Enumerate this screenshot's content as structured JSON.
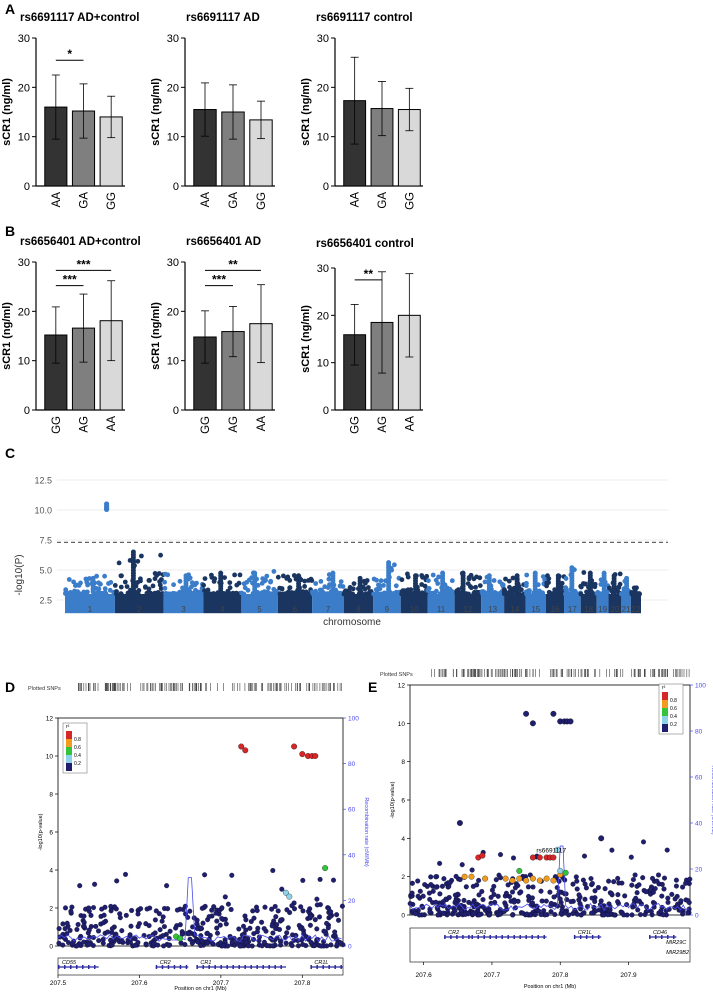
{
  "panel_letters": [
    "A",
    "B",
    "C",
    "D",
    "E"
  ],
  "colors": {
    "bar_dark": "#333333",
    "bar_mid": "#7f7f7f",
    "bar_light": "#d9d9d9",
    "manhattan_light": "#3b7dc9",
    "manhattan_dark": "#1a3560",
    "threshold": "#666666",
    "snp_navy": "#1f1f6e",
    "recomb_line": "#4a4af0",
    "ld_red": "#d62728",
    "ld_orange": "#f29c1f",
    "ld_green": "#33c43b",
    "ld_cyan": "#8fd3e8",
    "gene_blue": "#2b2b9e"
  },
  "chart_data": [
    {
      "id": "A1",
      "type": "bar",
      "title": "rs6691117 AD+control",
      "ylabel": "sCR1 (ng/ml)",
      "categories": [
        "AA",
        "GA",
        "GG"
      ],
      "values": [
        16,
        15.2,
        14
      ],
      "errors": [
        6.5,
        5.5,
        4.2
      ],
      "ylim": [
        0,
        30
      ],
      "yticks": [
        0,
        10,
        20,
        30
      ],
      "brackets": [
        {
          "from": 0,
          "to": 1,
          "label": "*"
        }
      ]
    },
    {
      "id": "A2",
      "type": "bar",
      "title": "rs6691117 AD",
      "ylabel": "sCR1 (ng/ml)",
      "categories": [
        "AA",
        "GA",
        "GG"
      ],
      "values": [
        15.5,
        15,
        13.4
      ],
      "errors": [
        5.4,
        5.5,
        3.8
      ],
      "ylim": [
        0,
        30
      ],
      "yticks": [
        0,
        10,
        20,
        30
      ],
      "brackets": []
    },
    {
      "id": "A3",
      "type": "bar",
      "title": "rs6691117 control",
      "ylabel": "sCR1 (ng/ml)",
      "categories": [
        "AA",
        "GA",
        "GG"
      ],
      "values": [
        17.3,
        15.7,
        15.5
      ],
      "errors": [
        8.8,
        5.5,
        4.3
      ],
      "ylim": [
        0,
        30
      ],
      "yticks": [
        0,
        10,
        20,
        30
      ],
      "brackets": []
    },
    {
      "id": "B1",
      "type": "bar",
      "title": "rs6656401 AD+control",
      "ylabel": "sCR1 (ng/ml)",
      "categories": [
        "GG",
        "AG",
        "AA"
      ],
      "values": [
        15.2,
        16.6,
        18.1
      ],
      "errors": [
        5.7,
        6.9,
        8.1
      ],
      "ylim": [
        0,
        30
      ],
      "yticks": [
        0,
        10,
        20,
        30
      ],
      "brackets": [
        {
          "from": 0,
          "to": 1,
          "label": "***"
        },
        {
          "from": 0,
          "to": 2,
          "label": "***"
        }
      ]
    },
    {
      "id": "B2",
      "type": "bar",
      "title": "rs6656401 AD",
      "ylabel": "sCR1 (ng/ml)",
      "categories": [
        "GG",
        "AG",
        "AA"
      ],
      "values": [
        14.8,
        15.9,
        17.5
      ],
      "errors": [
        5.3,
        5.1,
        7.9
      ],
      "ylim": [
        0,
        30
      ],
      "yticks": [
        0,
        10,
        20,
        30
      ],
      "brackets": [
        {
          "from": 0,
          "to": 1,
          "label": "***"
        },
        {
          "from": 0,
          "to": 2,
          "label": "**"
        }
      ]
    },
    {
      "id": "B3",
      "type": "bar",
      "title": "rs6656401 control",
      "ylabel": "sCR1 (ng/ml)",
      "categories": [
        "GG",
        "AG",
        "AA"
      ],
      "values": [
        15.9,
        18.5,
        20
      ],
      "errors": [
        6.4,
        10.7,
        8.8
      ],
      "ylim": [
        0,
        30
      ],
      "yticks": [
        0,
        10,
        20,
        30
      ],
      "brackets": [
        {
          "from": 0,
          "to": 1,
          "label": "**"
        }
      ]
    },
    {
      "id": "C",
      "type": "scatter",
      "subtype": "manhattan",
      "xlabel": "chromosome",
      "ylabel": "-log10(P)",
      "ylim": [
        1.3,
        13.0
      ],
      "yticks": [
        2.5,
        5.0,
        7.5,
        10.0,
        12.5
      ],
      "threshold": 7.3,
      "grid": true,
      "chromosomes": [
        "1",
        "2",
        "3",
        "4",
        "5",
        "6",
        "7",
        "8",
        "9",
        "10",
        "11",
        "12",
        "13",
        "14",
        "15",
        "16",
        "17",
        "18",
        "19",
        "20",
        "21",
        "22"
      ],
      "chrom_sizes": [
        249,
        243,
        198,
        190,
        182,
        171,
        159,
        145,
        138,
        134,
        135,
        133,
        114,
        107,
        102,
        90,
        83,
        80,
        59,
        64,
        47,
        51
      ],
      "chrom_peaks": [
        4.5,
        6.5,
        4.7,
        4.8,
        4.9,
        4.6,
        4.8,
        4.5,
        5.8,
        4.7,
        4.9,
        4.9,
        4.6,
        4.6,
        4.9,
        4.6,
        5.3,
        4.8,
        4.9,
        4.7,
        4.4,
        3.6
      ],
      "hits": [
        {
          "chrom": "1",
          "pos": 207.75,
          "values": [
            10.05,
            10.15,
            10.3,
            10.5
          ]
        }
      ]
    },
    {
      "id": "D",
      "type": "scatter",
      "subtype": "regional",
      "xlabel": "Position on chr1 (Mb)",
      "ylabel": "-log10(p-value)",
      "ylabel2": "Recombination rate (cM/Mb)",
      "xlim": [
        207.5,
        207.85
      ],
      "xticks": [
        207.5,
        207.6,
        207.7,
        207.8
      ],
      "ylim": [
        0,
        12
      ],
      "yticks": [
        0,
        2,
        4,
        6,
        8,
        10,
        12
      ],
      "y2lim": [
        0,
        100
      ],
      "y2ticks": [
        0,
        20,
        40,
        60,
        80,
        100
      ],
      "plotted_snps_label": "Plotted SNPs",
      "legend_title": "r²",
      "legend_ticks": [
        "0.8",
        "0.6",
        "0.4",
        "0.2"
      ],
      "genes": [
        {
          "name": "CD55",
          "start": 207.5,
          "end": 207.55
        },
        {
          "name": "CR2",
          "start": 207.62,
          "end": 207.66
        },
        {
          "name": "CR1",
          "start": 207.67,
          "end": 207.78
        },
        {
          "name": "CR1L",
          "start": 207.81,
          "end": 207.85
        }
      ],
      "highlight": [
        {
          "x": 207.725,
          "y": 10.5,
          "ld": "red"
        },
        {
          "x": 207.73,
          "y": 10.3,
          "ld": "red"
        },
        {
          "x": 207.79,
          "y": 10.5,
          "ld": "red"
        },
        {
          "x": 207.8,
          "y": 10.1,
          "ld": "red"
        },
        {
          "x": 207.807,
          "y": 10.0,
          "ld": "red"
        },
        {
          "x": 207.812,
          "y": 10.0,
          "ld": "red"
        },
        {
          "x": 207.816,
          "y": 10.0,
          "ld": "red"
        },
        {
          "x": 207.828,
          "y": 4.1,
          "ld": "green"
        },
        {
          "x": 207.645,
          "y": 0.5,
          "ld": "green"
        },
        {
          "x": 207.65,
          "y": 0.4,
          "ld": "green"
        },
        {
          "x": 207.78,
          "y": 2.8,
          "ld": "cyan"
        },
        {
          "x": 207.784,
          "y": 2.6,
          "ld": "cyan"
        }
      ]
    },
    {
      "id": "E",
      "type": "scatter",
      "subtype": "regional",
      "xlabel": "Position on chr1 (Mb)",
      "ylabel": "-log10(p-value)",
      "ylabel2": "Recombination rate (cM/Mb)",
      "xlim": [
        207.58,
        207.99
      ],
      "xticks": [
        207.6,
        207.7,
        207.8,
        207.9
      ],
      "ylim": [
        0,
        12
      ],
      "yticks": [
        0,
        2,
        4,
        6,
        8,
        10,
        12
      ],
      "y2lim": [
        0,
        100
      ],
      "y2ticks": [
        0,
        20,
        40,
        60,
        80,
        100
      ],
      "plotted_snps_label": "Plotted SNPs",
      "legend_title": "r²",
      "legend_ticks": [
        "0.8",
        "0.6",
        "0.4",
        "0.2"
      ],
      "annotation": "rs6691117",
      "genes": [
        {
          "name": "CR2",
          "start": 207.63,
          "end": 207.67
        },
        {
          "name": "CR1",
          "start": 207.67,
          "end": 207.78
        },
        {
          "name": "CR1L",
          "start": 207.82,
          "end": 207.86
        },
        {
          "name": "CD46",
          "start": 207.93,
          "end": 207.97
        },
        {
          "name": "MIR29C",
          "start": 207.97,
          "end": 207.975
        },
        {
          "name": "MIR29B2",
          "start": 207.97,
          "end": 207.975
        }
      ],
      "highlight": [
        {
          "x": 207.76,
          "y": 3.0,
          "ld": "red"
        },
        {
          "x": 207.77,
          "y": 3.0,
          "ld": "red"
        },
        {
          "x": 207.78,
          "y": 3.0,
          "ld": "red"
        },
        {
          "x": 207.785,
          "y": 3.0,
          "ld": "red"
        },
        {
          "x": 207.79,
          "y": 3.0,
          "ld": "red"
        },
        {
          "x": 207.68,
          "y": 3.0,
          "ld": "red"
        },
        {
          "x": 207.686,
          "y": 3.1,
          "ld": "red"
        },
        {
          "x": 207.66,
          "y": 2.0,
          "ld": "orange"
        },
        {
          "x": 207.67,
          "y": 2.0,
          "ld": "orange"
        },
        {
          "x": 207.69,
          "y": 1.9,
          "ld": "orange"
        },
        {
          "x": 207.72,
          "y": 1.9,
          "ld": "orange"
        },
        {
          "x": 207.73,
          "y": 1.8,
          "ld": "orange"
        },
        {
          "x": 207.74,
          "y": 1.9,
          "ld": "orange"
        },
        {
          "x": 207.75,
          "y": 1.8,
          "ld": "orange"
        },
        {
          "x": 207.76,
          "y": 1.9,
          "ld": "orange"
        },
        {
          "x": 207.77,
          "y": 1.8,
          "ld": "orange"
        },
        {
          "x": 207.78,
          "y": 1.9,
          "ld": "orange"
        },
        {
          "x": 207.79,
          "y": 1.8,
          "ld": "orange"
        },
        {
          "x": 207.8,
          "y": 2.1,
          "ld": "orange"
        },
        {
          "x": 207.74,
          "y": 2.3,
          "ld": "green"
        },
        {
          "x": 207.808,
          "y": 2.2,
          "ld": "green"
        },
        {
          "x": 207.796,
          "y": 3.4,
          "ld": "cyan"
        },
        {
          "x": 207.8,
          "y": 2.3,
          "ld": "cyan"
        }
      ]
    }
  ]
}
